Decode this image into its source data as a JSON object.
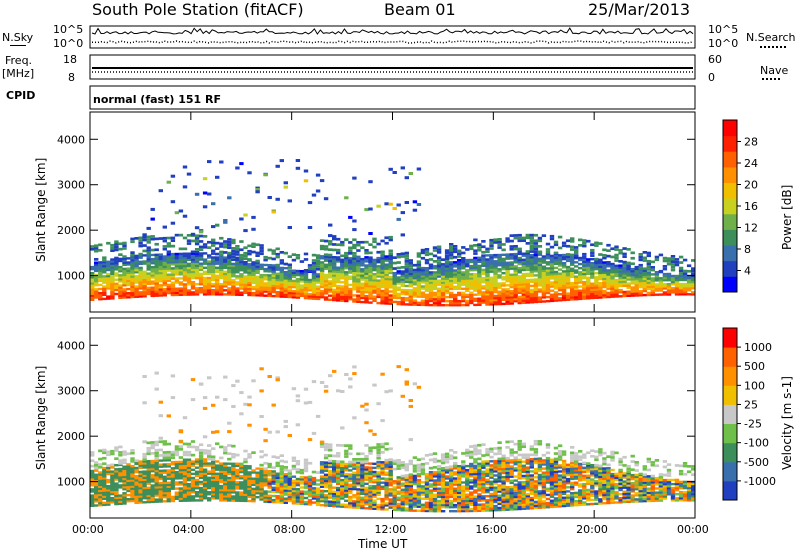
{
  "header": {
    "station": "South Pole Station (fitACF)",
    "beam": "Beam 01",
    "date": "25/Mar/2013"
  },
  "strip": {
    "nsky_label": "N.Sky",
    "nsearch_label": "N.Search",
    "noise_ticks": [
      "10^5",
      "10^0"
    ],
    "freq_label": "Freq.",
    "freq_unit": "[MHz]",
    "freq_ticks": [
      "18",
      "8"
    ],
    "nave_label": "Nave",
    "nave_ticks": [
      "60",
      "0"
    ],
    "cpid_label": "CPID",
    "cpid_value": "normal (fast) 151 RF"
  },
  "chart_data": [
    {
      "type": "heatmap",
      "name": "power",
      "ylabel": "Slant Range [km]",
      "xlabel": "Time UT",
      "xlim": [
        0,
        24
      ],
      "ylim": [
        200,
        4600
      ],
      "yticks": [
        1000,
        2000,
        3000,
        4000
      ],
      "colorbar": {
        "label": "Power [dB]",
        "ticks": [
          "28",
          "24",
          "20",
          "16",
          "12",
          "8",
          "4"
        ],
        "range": [
          0,
          32
        ],
        "colors": [
          "#0000ff",
          "#2040c0",
          "#3a6fae",
          "#3c8f5a",
          "#6fb04a",
          "#c8d020",
          "#f0c000",
          "#ff9000",
          "#ff6000",
          "#ff2000",
          "#ff0000"
        ]
      }
    },
    {
      "type": "heatmap",
      "name": "velocity",
      "ylabel": "Slant Range [km]",
      "xlabel": "Time UT",
      "xlim": [
        0,
        24
      ],
      "ylim": [
        200,
        4600
      ],
      "yticks": [
        1000,
        2000,
        3000,
        4000
      ],
      "colorbar": {
        "label": "Velocity [m s-1]",
        "ticks": [
          "1000",
          "500",
          "100",
          "25",
          "-25",
          "-100",
          "-500",
          "-1000"
        ],
        "colors": [
          "#2040c0",
          "#3a6fae",
          "#3c8f5a",
          "#6fc04a",
          "#c8c8c8",
          "#f0c000",
          "#ff9000",
          "#ff6000",
          "#ff0000"
        ]
      }
    }
  ],
  "xaxis": {
    "ticks": [
      "00:00",
      "04:00",
      "08:00",
      "12:00",
      "16:00",
      "20:00",
      "00:00"
    ],
    "label": "Time UT"
  }
}
